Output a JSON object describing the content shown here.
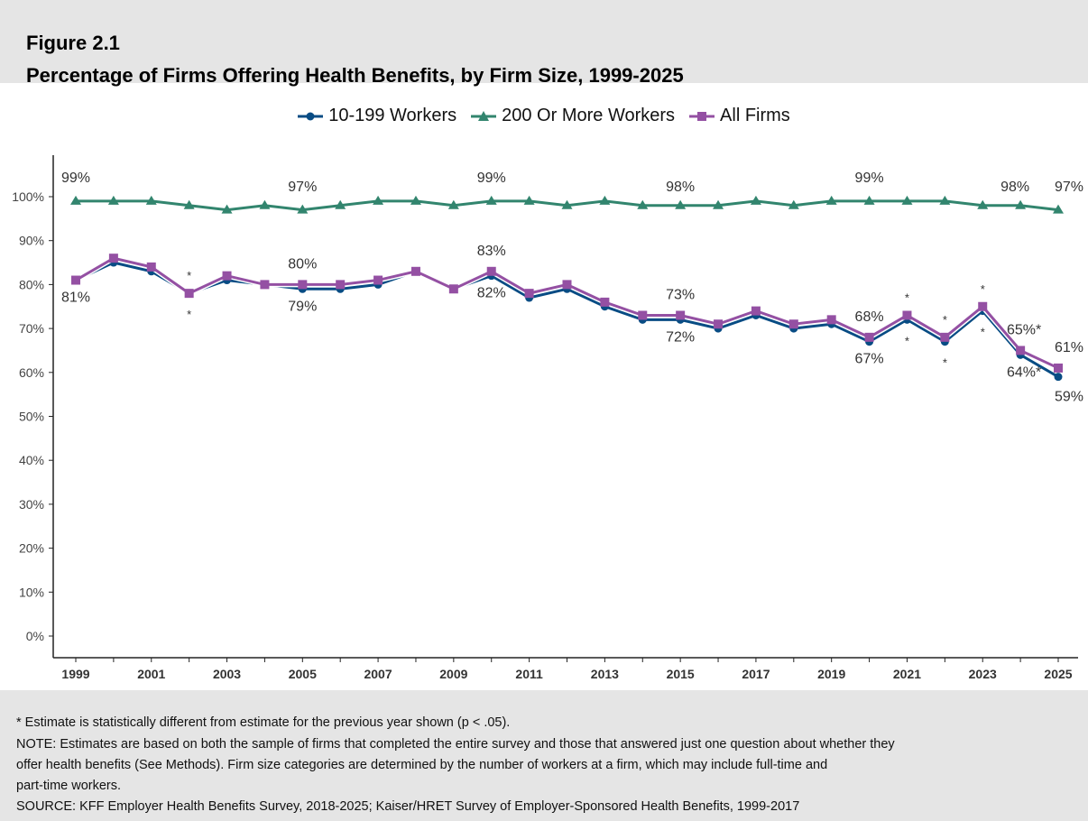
{
  "figure_label": "Figure 2.1",
  "title": "Percentage of Firms Offering Health Benefits, by Firm Size, 1999-2025",
  "chart_data": {
    "type": "line",
    "title": "Percentage of Firms Offering Health Benefits, by Firm Size, 1999-2025",
    "x": [
      1999,
      2000,
      2001,
      2002,
      2003,
      2004,
      2005,
      2006,
      2007,
      2008,
      2009,
      2010,
      2011,
      2012,
      2013,
      2014,
      2015,
      2016,
      2017,
      2018,
      2019,
      2020,
      2021,
      2022,
      2023,
      2024,
      2025
    ],
    "x_tick_labels": [
      "1999",
      "2001",
      "2003",
      "2005",
      "2007",
      "2009",
      "2011",
      "2013",
      "2015",
      "2017",
      "2019",
      "2021",
      "2023",
      "2025"
    ],
    "y_tick_labels": [
      "0%",
      "10%",
      "20%",
      "30%",
      "40%",
      "50%",
      "60%",
      "70%",
      "80%",
      "90%",
      "100%"
    ],
    "ylim": [
      0,
      100
    ],
    "grid": false,
    "legend_position": "top",
    "series": [
      {
        "name": "10-199 Workers",
        "color": "#084c84",
        "marker": "circle",
        "values": [
          81,
          85,
          83,
          78,
          81,
          80,
          79,
          79,
          80,
          83,
          79,
          82,
          77,
          79,
          75,
          72,
          72,
          70,
          73,
          70,
          71,
          67,
          72,
          67,
          74,
          64,
          59
        ]
      },
      {
        "name": "200 Or More Workers",
        "color": "#32856e",
        "marker": "triangle",
        "values": [
          99,
          99,
          99,
          98,
          97,
          98,
          97,
          98,
          99,
          99,
          98,
          99,
          99,
          98,
          99,
          98,
          98,
          98,
          99,
          98,
          99,
          99,
          99,
          99,
          98,
          98,
          97
        ]
      },
      {
        "name": "All Firms",
        "color": "#9450a3",
        "marker": "square",
        "values": [
          81,
          86,
          84,
          78,
          82,
          80,
          80,
          80,
          81,
          83,
          79,
          83,
          78,
          80,
          76,
          73,
          73,
          71,
          74,
          71,
          72,
          68,
          73,
          68,
          75,
          65,
          61
        ]
      }
    ],
    "annotations": [
      {
        "text": "99%",
        "year": 1999,
        "series": 1,
        "pos": "above"
      },
      {
        "text": "97%",
        "year": 2005,
        "series": 1,
        "pos": "above"
      },
      {
        "text": "99%",
        "year": 2010,
        "series": 1,
        "pos": "above"
      },
      {
        "text": "98%",
        "year": 2015,
        "series": 1,
        "pos": "above"
      },
      {
        "text": "99%",
        "year": 2020,
        "series": 1,
        "pos": "above"
      },
      {
        "text": "98%",
        "year": 2024,
        "series": 1,
        "pos": "above"
      },
      {
        "text": "97%",
        "year": 2025,
        "series": 1,
        "pos": "above"
      },
      {
        "text": "81%",
        "year": 1999,
        "series": 0,
        "pos": "below"
      },
      {
        "text": "80%",
        "year": 2005,
        "series": 2,
        "pos": "above"
      },
      {
        "text": "79%",
        "year": 2005,
        "series": 0,
        "pos": "below"
      },
      {
        "text": "83%",
        "year": 2010,
        "series": 2,
        "pos": "above"
      },
      {
        "text": "82%",
        "year": 2010,
        "series": 0,
        "pos": "below"
      },
      {
        "text": "73%",
        "year": 2015,
        "series": 2,
        "pos": "above"
      },
      {
        "text": "72%",
        "year": 2015,
        "series": 0,
        "pos": "below"
      },
      {
        "text": "68%",
        "year": 2020,
        "series": 2,
        "pos": "above"
      },
      {
        "text": "67%",
        "year": 2020,
        "series": 0,
        "pos": "below"
      },
      {
        "text": "65%*",
        "year": 2024,
        "series": 2,
        "pos": "above"
      },
      {
        "text": "64%*",
        "year": 2024,
        "series": 0,
        "pos": "below"
      },
      {
        "text": "61%",
        "year": 2025,
        "series": 2,
        "pos": "above"
      },
      {
        "text": "59%",
        "year": 2025,
        "series": 0,
        "pos": "below"
      },
      {
        "text": "*",
        "year": 2002,
        "series": 2,
        "pos": "above"
      },
      {
        "text": "*",
        "year": 2002,
        "series": 0,
        "pos": "below"
      },
      {
        "text": "*",
        "year": 2021,
        "series": 2,
        "pos": "above"
      },
      {
        "text": "*",
        "year": 2021,
        "series": 0,
        "pos": "below"
      },
      {
        "text": "*",
        "year": 2022,
        "series": 2,
        "pos": "above"
      },
      {
        "text": "*",
        "year": 2022,
        "series": 0,
        "pos": "below"
      },
      {
        "text": "*",
        "year": 2023,
        "series": 2,
        "pos": "above"
      },
      {
        "text": "*",
        "year": 2023,
        "series": 0,
        "pos": "below"
      }
    ]
  },
  "footer": {
    "line1": "* Estimate is statistically different from estimate for the previous year shown (p < .05).",
    "line2": "NOTE: Estimates are based on both the sample of firms that completed the entire survey and those that answered just one question about whether they",
    "line3": "offer health benefits (See Methods). Firm size categories are determined by the number of workers at a firm, which may include full-time and",
    "line4": "part-time workers.",
    "line5": "SOURCE: KFF Employer Health Benefits Survey, 2018-2025; Kaiser/HRET Survey of Employer-Sponsored Health Benefits, 1999-2017"
  }
}
